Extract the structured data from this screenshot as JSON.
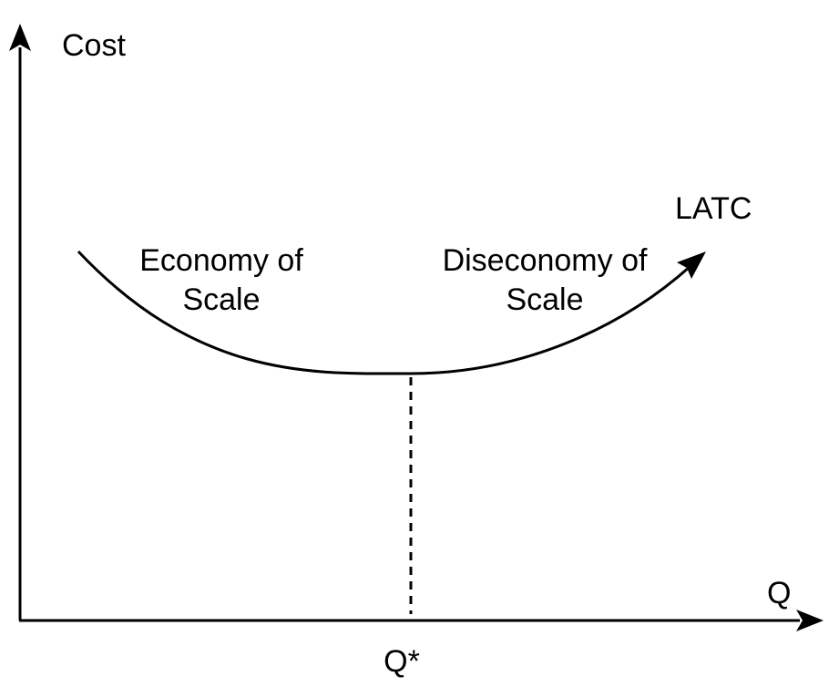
{
  "diagram": {
    "y_axis_label": "Cost",
    "x_axis_label": "Q",
    "x_marker_label": "Q*",
    "curve_label": "LATC",
    "left_region_label": [
      "Economy of",
      "Scale"
    ],
    "right_region_label": [
      "Diseconomy of",
      "Scale"
    ],
    "colors": {
      "line": "#000000",
      "background": "#ffffff"
    }
  }
}
